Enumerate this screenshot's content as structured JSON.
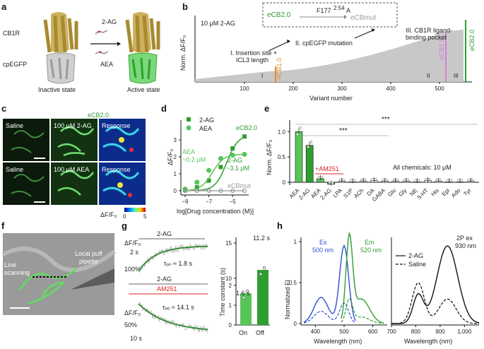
{
  "panels": {
    "a": {
      "label": "a",
      "cb1r": "CB1R",
      "cpegfp": "cpEGFP",
      "ligand1": "2-AG",
      "ligand2": "AEA",
      "inactive": "Inactive state",
      "active": "Active state"
    },
    "b": {
      "label": "b",
      "condition": "10 μM 2-AG",
      "ylabel": "Norm. ΔF/F₀",
      "xlabel": "Variant number",
      "ecb20": "eCB2.0",
      "mutation": "F177",
      "mutation_sup": "2.54",
      "mutation_tail": "A",
      "ecbmut": "eCBmut",
      "step1": "I. Insertion site +",
      "step1b": "ICL3 length",
      "step2": "II. cpEGFP mutation",
      "step3": "III. CB1R ligand-",
      "step3b": "binding pocket",
      "ecb10": "eCB1.0",
      "ecb15": "eCB1.5",
      "ecb20_side": "eCB2.0",
      "roman1": "I",
      "roman2": "II",
      "roman3": "III",
      "xticks": [
        "100",
        "200",
        "300",
        "400",
        "500"
      ]
    },
    "c": {
      "label": "c",
      "title": "eCB2.0",
      "saline1": "Saline",
      "drug1": "100 μM 2-AG",
      "resp1": "Response",
      "saline2": "Saline",
      "drug2": "100 μM AEA",
      "resp2": "Response",
      "cbar_label": "ΔF/F₀",
      "cbar_min": "0",
      "cbar_max": "5"
    },
    "d": {
      "label": "d",
      "legend1": "2-AG",
      "legend2": "AEA",
      "ylabel": "ΔF/F₀",
      "xlabel": "log[Drug concentration (M)]",
      "ann_ecb": "eCB2.0",
      "ann_aea": "AEA",
      "ann_aea_val": "~0.2 μM",
      "ann_2ag": "2-AG",
      "ann_2ag_val": "~3.1 μM",
      "ann_mut": "eCBmut"
    },
    "e": {
      "label": "e",
      "ylabel": "Norm. ΔF/F₀",
      "sig1": "***",
      "sig2": "***",
      "am251": "+AM251",
      "note": "All chemicals: 10 μM",
      "categories": [
        "AEA",
        "2-AG",
        "AEA",
        "2-AG",
        "LPA",
        "S1P",
        "ACh",
        "DA",
        "GABA",
        "Glu",
        "Gly",
        "NE",
        "5-HT",
        "His",
        "Epi",
        "Ado",
        "Tyr"
      ],
      "yticks": [
        "0",
        "0.5",
        "1.0"
      ]
    },
    "f": {
      "label": "f",
      "line": "Line",
      "scanning": "scanning",
      "local": "Local puff",
      "pipette": "pipette"
    },
    "g": {
      "label": "g",
      "ylabel1": "ΔF/F₀",
      "pct1": "100%",
      "t1": "2 s",
      "drug1": "2-AG",
      "tau_on": "τₒₙ ≈ 1.8 s",
      "drug2": "2-AG",
      "am251": "AM251",
      "ylabel2": "ΔF/F₀",
      "pct2": "50%",
      "t2": "10 s",
      "tau_off": "τₒₒ ≈ 14.1 s",
      "bar_ylabel": "Time constant (s)",
      "bar_on": "On",
      "bar_off": "Off",
      "val_on": "1.6 s",
      "val_off": "11.2 s",
      "bar_yticks": [
        "0",
        "1",
        "2",
        "10",
        "15"
      ]
    },
    "h": {
      "label": "h",
      "ylabel": "Normalized FI",
      "xlabel1": "Wavelength (nm)",
      "xlabel2": "Wavelength (nm)",
      "ex": "Ex",
      "ex_nm": "500 nm",
      "em": "Em",
      "em_nm": "520 nm",
      "twop": "2P ex",
      "twop_nm": "930 nm",
      "leg1": "2-AG",
      "leg2": "Saline",
      "xticks1": [
        "400",
        "500",
        "600"
      ],
      "xticks2": [
        "700",
        "800",
        "900",
        "1,000"
      ]
    }
  },
  "chart_data": [
    {
      "type": "bar",
      "panel": "b",
      "title": "Variant screen",
      "ylabel": "Norm. ΔF/F₀",
      "xlabel": "Variant number",
      "x_range": [
        0,
        565
      ],
      "highlighted": [
        {
          "name": "eCB1.0",
          "variant": 163
        },
        {
          "name": "eCB1.5",
          "variant": 528
        },
        {
          "name": "eCB2.0",
          "variant": 563
        }
      ]
    },
    {
      "type": "scatter",
      "panel": "d",
      "xlabel": "log[Drug concentration (M)]",
      "ylabel": "ΔF/F₀",
      "xlim": [
        -9,
        -4
      ],
      "ylim": [
        0,
        4
      ],
      "series": [
        {
          "name": "2-AG",
          "x": [
            -9,
            -8,
            -7,
            -6,
            -5,
            -4
          ],
          "y": [
            0.05,
            0.2,
            0.6,
            1.4,
            2.5,
            3.2
          ]
        },
        {
          "name": "AEA",
          "x": [
            -9,
            -8,
            -7,
            -6,
            -5,
            -4
          ],
          "y": [
            0.1,
            0.5,
            1.2,
            1.9,
            2.1,
            2.15
          ]
        },
        {
          "name": "eCBmut",
          "x": [
            -9,
            -8,
            -7,
            -6,
            -5,
            -4
          ],
          "y": [
            0,
            0,
            0,
            0,
            0,
            0
          ]
        }
      ]
    },
    {
      "type": "bar",
      "panel": "e",
      "ylabel": "Norm. ΔF/F₀",
      "ylim": [
        0,
        1.2
      ],
      "categories": [
        "AEA",
        "2-AG",
        "AEA+AM251",
        "2-AG+AM251",
        "LPA",
        "S1P",
        "ACh",
        "DA",
        "GABA",
        "Glu",
        "Gly",
        "NE",
        "5-HT",
        "His",
        "Epi",
        "Ado",
        "Tyr"
      ],
      "values": [
        1.0,
        0.73,
        0.07,
        -0.04,
        0.02,
        0.01,
        0.02,
        0.03,
        0.02,
        0.02,
        0.02,
        0.01,
        0.03,
        0.02,
        0.01,
        0.01,
        0.02
      ]
    },
    {
      "type": "bar",
      "panel": "g",
      "ylabel": "Time constant (s)",
      "categories": [
        "On",
        "Off"
      ],
      "values": [
        1.6,
        11.2
      ]
    }
  ]
}
